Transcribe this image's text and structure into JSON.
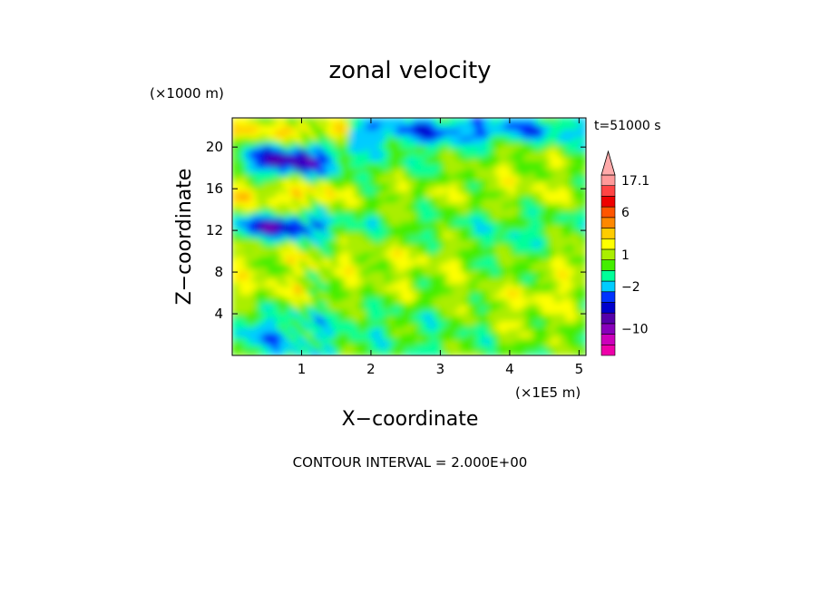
{
  "chart_data": {
    "type": "heatmap",
    "title": "zonal velocity",
    "xlabel": "X−coordinate",
    "ylabel": "Z−coordinate",
    "x_unit": "(×1E5 m)",
    "y_unit": "(×1000 m)",
    "time_label": "t=51000 s",
    "footer": "CONTOUR INTERVAL = 2.000E+00",
    "xlim": [
      0,
      5.1
    ],
    "ylim": [
      0,
      22.8
    ],
    "x_ticks": [
      {
        "value": 1,
        "label": "1"
      },
      {
        "value": 2,
        "label": "2"
      },
      {
        "value": 3,
        "label": "3"
      },
      {
        "value": 4,
        "label": "4"
      },
      {
        "value": 5,
        "label": "5"
      }
    ],
    "y_ticks": [
      {
        "value": 4,
        "label": "4"
      },
      {
        "value": 8,
        "label": "8"
      },
      {
        "value": 12,
        "label": "12"
      },
      {
        "value": 16,
        "label": "16"
      },
      {
        "value": 20,
        "label": "20"
      }
    ],
    "colorbar": {
      "levels": [
        {
          "color": "#ee00aa"
        },
        {
          "color": "#cc00bb"
        },
        {
          "color": "#8800bb"
        },
        {
          "color": "#5500aa"
        },
        {
          "color": "#0000cc"
        },
        {
          "color": "#0033ff"
        },
        {
          "color": "#00ccff"
        },
        {
          "color": "#00ff99"
        },
        {
          "color": "#44ee00"
        },
        {
          "color": "#aaee00"
        },
        {
          "color": "#ffff00"
        },
        {
          "color": "#ffcc00"
        },
        {
          "color": "#ff8800"
        },
        {
          "color": "#ff5500"
        },
        {
          "color": "#ee0000"
        },
        {
          "color": "#ff4444"
        },
        {
          "color": "#ff9999"
        }
      ],
      "top_color": "#ffaaaa",
      "labels": [
        {
          "level_index": 16,
          "text": "17.1"
        },
        {
          "level_index": 13,
          "text": "6"
        },
        {
          "level_index": 9,
          "text": "1"
        },
        {
          "level_index": 6,
          "text": "−2"
        },
        {
          "level_index": 2,
          "text": "−10"
        }
      ]
    },
    "field_bands": [
      {
        "z": [
          20.5,
          22.8
        ],
        "desc": "orange/red west, green/cyan east"
      },
      {
        "z": [
          17,
          20.5
        ],
        "desc": "blue core west of x=1.5"
      },
      {
        "z": [
          13,
          17
        ],
        "desc": "orange west, yellow east"
      },
      {
        "z": [
          11,
          13.5
        ],
        "desc": "dark blue west"
      },
      {
        "z": [
          6,
          11
        ],
        "desc": "orange/yellow bands"
      },
      {
        "z": [
          0,
          6
        ],
        "desc": "green/cyan west, yellow east"
      }
    ]
  }
}
